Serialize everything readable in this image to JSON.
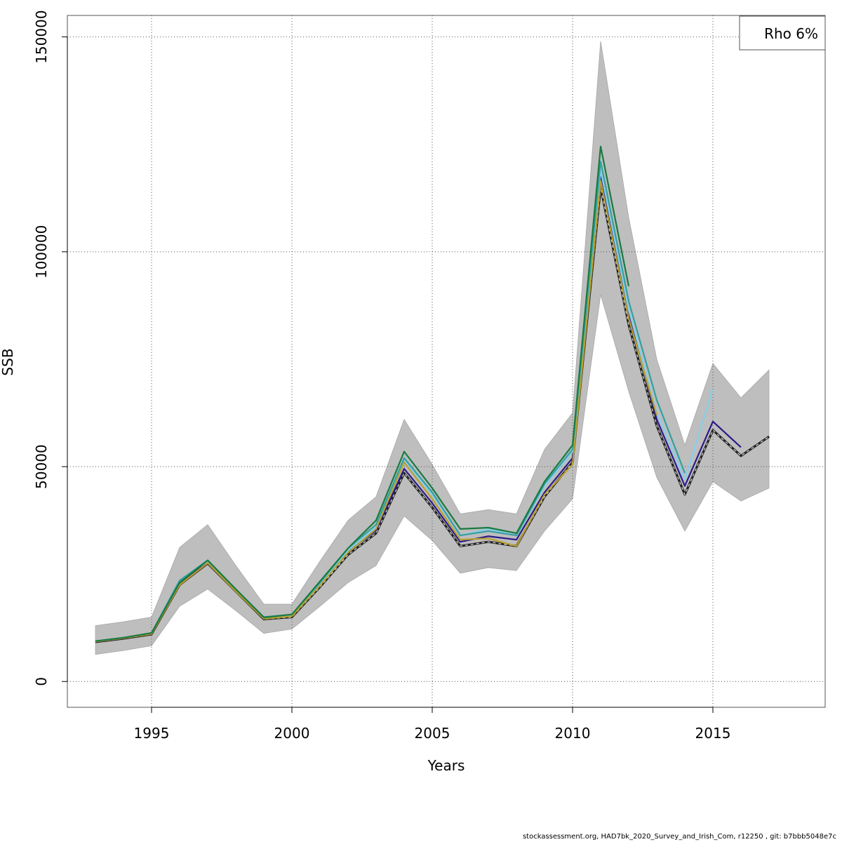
{
  "chart_data": {
    "type": "line",
    "xlabel": "Years",
    "ylabel": "SSB",
    "xlim": [
      1992,
      2019
    ],
    "ylim": [
      -6000,
      155000
    ],
    "x_ticks": [
      1995,
      2000,
      2005,
      2010,
      2015
    ],
    "y_ticks": [
      0,
      50000,
      100000,
      150000
    ],
    "x_tick_labels": [
      "1995",
      "2000",
      "2005",
      "2010",
      "2015"
    ],
    "y_tick_labels": [
      "0",
      "50000",
      "100000",
      "150000"
    ],
    "grid": true,
    "legend_text": "Rho 6%",
    "legend_placement": "top-right",
    "confidence_band": {
      "color": "#bebebe",
      "x": [
        1993,
        1994,
        1995,
        1996,
        1997,
        1998,
        1999,
        2000,
        2001,
        2002,
        2003,
        2004,
        2005,
        2006,
        2007,
        2008,
        2009,
        2010,
        2011,
        2012,
        2013,
        2014,
        2015,
        2016,
        2017
      ],
      "upper": [
        13000,
        13900,
        15000,
        31200,
        36500,
        27000,
        18000,
        18000,
        28000,
        37500,
        43000,
        61000,
        50500,
        39000,
        40000,
        39000,
        54000,
        62500,
        149000,
        108000,
        75000,
        55000,
        74000,
        66000,
        72500
      ],
      "lower": [
        6300,
        7200,
        8300,
        17500,
        21500,
        16500,
        11200,
        12200,
        17500,
        23000,
        27000,
        38500,
        32800,
        25200,
        26500,
        25800,
        35000,
        42500,
        90000,
        67500,
        47500,
        35000,
        46500,
        42000,
        45000
      ]
    },
    "series": [
      {
        "color": "#222222",
        "dashed": true,
        "x": [
          1993,
          1994,
          1995,
          1996,
          1997,
          1998,
          1999,
          2000,
          2001,
          2002,
          2003,
          2004,
          2005,
          2006,
          2007,
          2008,
          2009,
          2010,
          2011,
          2012,
          2013,
          2014,
          2015,
          2016,
          2017
        ],
        "values": [
          9200,
          10000,
          11000,
          22500,
          27500,
          21000,
          14500,
          15000,
          22000,
          29500,
          34500,
          48500,
          40500,
          31500,
          32500,
          31500,
          43000,
          51000,
          115000,
          83000,
          59500,
          43500,
          58500,
          52500,
          57000
        ]
      },
      {
        "color": "#2e1a87",
        "x": [
          1993,
          1994,
          1995,
          1996,
          1997,
          1998,
          1999,
          2000,
          2001,
          2002,
          2003,
          2004,
          2005,
          2006,
          2007,
          2008,
          2009,
          2010,
          2011,
          2012,
          2013,
          2014,
          2015,
          2016
        ],
        "values": [
          9300,
          10100,
          11200,
          23000,
          27800,
          21200,
          14700,
          15300,
          22400,
          30200,
          35200,
          49500,
          41500,
          32500,
          33800,
          33000,
          44000,
          52000,
          117500,
          85500,
          61000,
          45500,
          60500,
          54500
        ]
      },
      {
        "color": "#87ceeb",
        "x": [
          1993,
          1994,
          1995,
          1996,
          1997,
          1998,
          1999,
          2000,
          2001,
          2002,
          2003,
          2004,
          2005,
          2006,
          2007,
          2008,
          2009,
          2010,
          2011,
          2012,
          2013,
          2014,
          2015
        ],
        "values": [
          9400,
          10200,
          11300,
          23500,
          28000,
          21500,
          14900,
          15500,
          22800,
          30500,
          36000,
          51500,
          43500,
          34000,
          35500,
          34000,
          45500,
          53500,
          119000,
          86500,
          62500,
          47000,
          68000
        ]
      },
      {
        "color": "#33a0a0",
        "x": [
          1993,
          1994,
          1995,
          1996,
          1997,
          1998,
          1999,
          2000,
          2001,
          2002,
          2003,
          2004,
          2005,
          2006,
          2007,
          2008,
          2009,
          2010,
          2011,
          2012,
          2013,
          2014
        ],
        "values": [
          9400,
          10200,
          11300,
          23500,
          28200,
          21500,
          15000,
          15600,
          23000,
          31000,
          36500,
          52000,
          44000,
          34000,
          35000,
          34000,
          46000,
          54000,
          121000,
          88500,
          65500,
          48500
        ]
      },
      {
        "color": "#b8a030",
        "x": [
          1993,
          1994,
          1995,
          1996,
          1997,
          1998,
          1999,
          2000,
          2001,
          2002,
          2003,
          2004,
          2005,
          2006,
          2007,
          2008,
          2009,
          2010,
          2011,
          2012,
          2013
        ],
        "values": [
          9300,
          10100,
          11100,
          22500,
          27600,
          21000,
          14600,
          15200,
          22300,
          30000,
          35500,
          51000,
          42500,
          33000,
          33300,
          31500,
          43500,
          50500,
          116500,
          84500,
          62000
        ]
      },
      {
        "color": "#1a7a40",
        "x": [
          1993,
          1994,
          1995,
          1996,
          1997,
          1998,
          1999,
          2000,
          2001,
          2002,
          2003,
          2004,
          2005,
          2006,
          2007,
          2008,
          2009,
          2010,
          2011,
          2012
        ],
        "values": [
          9400,
          10200,
          11300,
          23000,
          28200,
          21500,
          14900,
          15600,
          23300,
          31000,
          37500,
          53500,
          45000,
          35500,
          35800,
          34500,
          46500,
          55000,
          124500,
          92000
        ]
      }
    ]
  },
  "footer": "stockassessment.org, HAD7bk_2020_Survey_and_Irish_Com, r12250 , git: b7bbb5048e7c"
}
